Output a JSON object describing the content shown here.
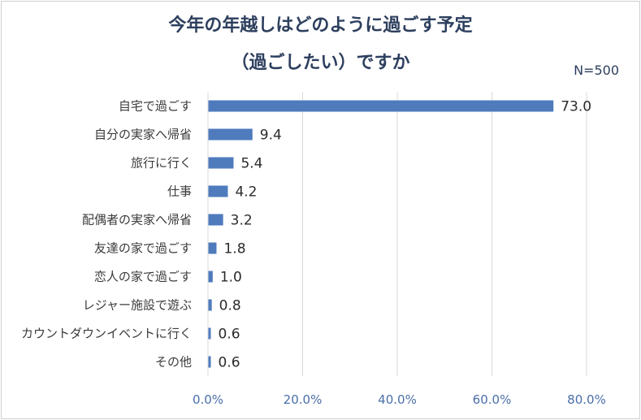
{
  "chart_data": {
    "type": "bar",
    "orientation": "horizontal",
    "title_line1": "今年の年越しはどのように過ごす予定",
    "title_line2": "（過ごしたい）ですか",
    "sample_note": "N=500",
    "categories": [
      "自宅で過ごす",
      "自分の実家へ帰省",
      "旅行に行く",
      "仕事",
      "配偶者の実家へ帰省",
      "友達の家で過ごす",
      "恋人の家で過ごす",
      "レジャー施設で遊ぶ",
      "カウントダウンイベントに行く",
      "その他"
    ],
    "values": [
      73.0,
      9.4,
      5.4,
      4.2,
      3.2,
      1.8,
      1.0,
      0.8,
      0.6,
      0.6
    ],
    "value_labels": [
      "73.0",
      "9.4",
      "5.4",
      "4.2",
      "3.2",
      "1.8",
      "1.0",
      "0.8",
      "0.6",
      "0.6"
    ],
    "xlim": [
      0,
      80
    ],
    "ticks": [
      0,
      20,
      40,
      60,
      80
    ],
    "tick_labels": [
      "0.0%",
      "20.0%",
      "40.0%",
      "60.0%",
      "80.0%"
    ],
    "grid": true,
    "bar_color": "#4f7bbd",
    "grid_color": "#d9d9d9"
  }
}
